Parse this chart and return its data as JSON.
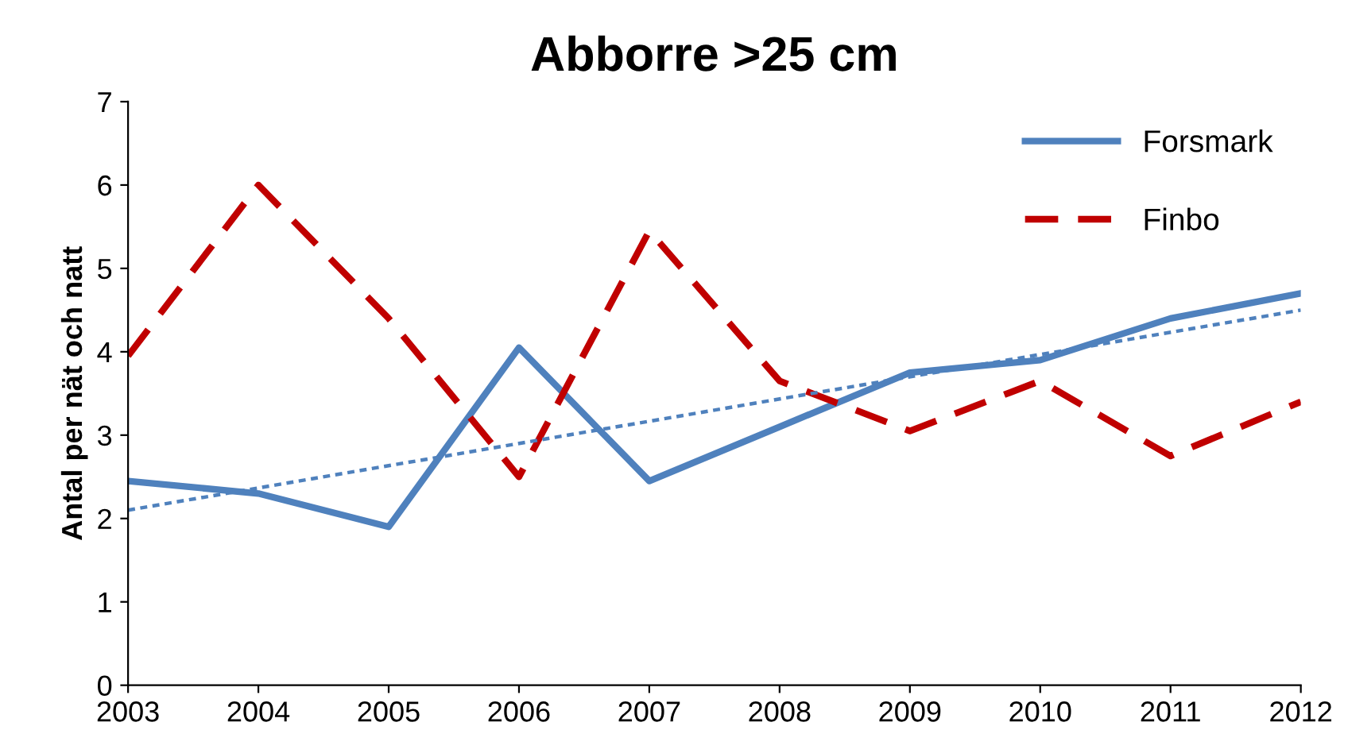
{
  "chart_data": {
    "type": "line",
    "title": "Abborre >25 cm",
    "ylabel": "Antal per nät och natt",
    "x": [
      2003,
      2004,
      2005,
      2006,
      2007,
      2008,
      2009,
      2010,
      2011,
      2012
    ],
    "series": [
      {
        "name": "Forsmark",
        "color": "#4f81bd",
        "line_style": "solid",
        "values": [
          2.45,
          2.3,
          1.9,
          4.05,
          2.45,
          3.1,
          3.75,
          3.9,
          4.4,
          4.7
        ]
      },
      {
        "name": "Finbo",
        "color": "#c00000",
        "line_style": "dashed",
        "values": [
          3.95,
          6.0,
          4.4,
          2.5,
          5.45,
          3.65,
          3.05,
          3.65,
          2.75,
          3.4
        ]
      },
      {
        "color": "#4f81bd",
        "line_style": "dotted",
        "x": [
          2003,
          2012
        ],
        "values": [
          2.1,
          4.5
        ]
      }
    ],
    "xlim": [
      2003,
      2012
    ],
    "xticks": [
      2003,
      2004,
      2005,
      2006,
      2007,
      2008,
      2009,
      2010,
      2011,
      2012
    ],
    "ylim": [
      0,
      7
    ],
    "yticks": [
      0,
      1,
      2,
      3,
      4,
      5,
      6,
      7
    ],
    "grid": false,
    "legend": "top right",
    "marker": "none"
  }
}
